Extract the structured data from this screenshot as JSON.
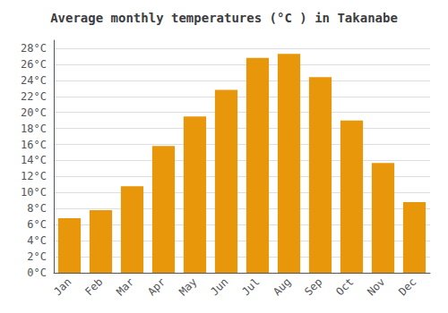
{
  "chart_data": {
    "type": "bar",
    "title": "Average monthly temperatures (°C ) in Takanabe",
    "categories": [
      "Jan",
      "Feb",
      "Mar",
      "Apr",
      "May",
      "Jun",
      "Jul",
      "Aug",
      "Sep",
      "Oct",
      "Nov",
      "Dec"
    ],
    "values": [
      6.8,
      7.8,
      10.8,
      15.8,
      19.5,
      22.8,
      26.8,
      27.3,
      24.4,
      19.0,
      13.7,
      8.8
    ],
    "color": "#E8960A",
    "ylim": [
      0,
      29
    ],
    "yticks": [
      {
        "value": 0,
        "label": "0°C"
      },
      {
        "value": 2,
        "label": "2°C"
      },
      {
        "value": 4,
        "label": "4°C"
      },
      {
        "value": 6,
        "label": "6°C"
      },
      {
        "value": 8,
        "label": "8°C"
      },
      {
        "value": 10,
        "label": "10°C"
      },
      {
        "value": 12,
        "label": "12°C"
      },
      {
        "value": 14,
        "label": "14°C"
      },
      {
        "value": 16,
        "label": "16°C"
      },
      {
        "value": 18,
        "label": "18°C"
      },
      {
        "value": 20,
        "label": "20°C"
      },
      {
        "value": 22,
        "label": "22°C"
      },
      {
        "value": 24,
        "label": "24°C"
      },
      {
        "value": 26,
        "label": "26°C"
      },
      {
        "value": 28,
        "label": "28°C"
      }
    ],
    "grid": true
  }
}
